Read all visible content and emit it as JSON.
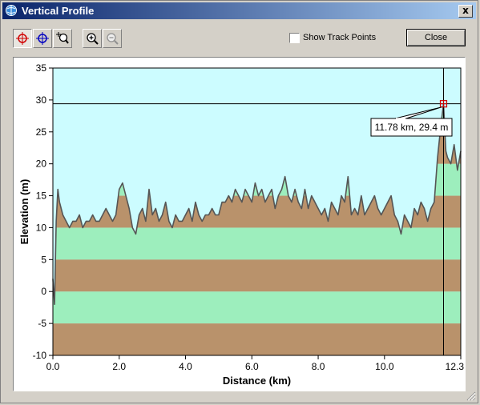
{
  "window": {
    "title": "Vertical Profile",
    "close_glyph": "x"
  },
  "toolbar": {
    "tools": [
      {
        "name": "crosshair-red-icon",
        "pressed": true
      },
      {
        "name": "crosshair-blue-icon",
        "pressed": false
      },
      {
        "name": "zoom-cursor-icon",
        "pressed": false
      },
      {
        "name": "zoom-in-icon",
        "pressed": false
      },
      {
        "name": "zoom-out-icon",
        "pressed": false
      }
    ],
    "show_track_points_label": "Show Track Points",
    "show_track_points_checked": false,
    "close_label": "Close"
  },
  "chart_data": {
    "type": "area",
    "xlabel": "Distance   (km)",
    "ylabel": "Elevation (m)",
    "xlim": [
      0,
      12.3
    ],
    "ylim": [
      -10,
      35
    ],
    "x_ticks": [
      "0.0",
      "2.0",
      "4.0",
      "6.0",
      "8.0",
      "10.0",
      "12.3"
    ],
    "x_tick_values": [
      0,
      2,
      4,
      6,
      8,
      10,
      12.3
    ],
    "y_ticks": [
      "35",
      "30",
      "25",
      "20",
      "15",
      "10",
      "5",
      "0",
      "-5",
      "-10"
    ],
    "y_tick_values": [
      35,
      30,
      25,
      20,
      15,
      10,
      5,
      0,
      -5,
      -10
    ],
    "band_colors": {
      "green": "#9deebd",
      "brown": "#b9926b",
      "sky": "#ccfcff",
      "line": "#555555"
    },
    "cursor": {
      "x": 11.78,
      "y": 29.4,
      "label": "11.78 km, 29.4 m"
    },
    "profile": {
      "x": [
        0.0,
        0.05,
        0.1,
        0.15,
        0.2,
        0.3,
        0.4,
        0.5,
        0.6,
        0.7,
        0.8,
        0.9,
        1.0,
        1.1,
        1.2,
        1.3,
        1.4,
        1.5,
        1.6,
        1.7,
        1.8,
        1.9,
        2.0,
        2.1,
        2.2,
        2.3,
        2.4,
        2.5,
        2.6,
        2.7,
        2.8,
        2.9,
        3.0,
        3.1,
        3.2,
        3.3,
        3.4,
        3.5,
        3.6,
        3.7,
        3.8,
        3.9,
        4.0,
        4.1,
        4.2,
        4.3,
        4.4,
        4.5,
        4.6,
        4.7,
        4.8,
        4.9,
        5.0,
        5.1,
        5.2,
        5.3,
        5.4,
        5.5,
        5.6,
        5.7,
        5.8,
        5.9,
        6.0,
        6.1,
        6.2,
        6.3,
        6.4,
        6.5,
        6.6,
        6.7,
        6.8,
        6.9,
        7.0,
        7.1,
        7.2,
        7.3,
        7.4,
        7.5,
        7.6,
        7.7,
        7.8,
        7.9,
        8.0,
        8.1,
        8.2,
        8.3,
        8.4,
        8.5,
        8.6,
        8.7,
        8.8,
        8.9,
        9.0,
        9.1,
        9.2,
        9.3,
        9.4,
        9.5,
        9.6,
        9.7,
        9.8,
        9.9,
        10.0,
        10.1,
        10.2,
        10.3,
        10.4,
        10.5,
        10.6,
        10.7,
        10.8,
        10.9,
        11.0,
        11.1,
        11.2,
        11.3,
        11.4,
        11.5,
        11.6,
        11.7,
        11.78,
        11.85,
        11.9,
        12.0,
        12.1,
        12.2,
        12.3
      ],
      "y": [
        2,
        -2,
        11,
        16,
        14,
        12,
        11,
        10,
        11,
        11,
        12,
        10,
        11,
        11,
        12,
        11,
        11,
        12,
        13,
        12,
        11,
        12,
        16,
        17,
        15,
        13,
        10,
        9,
        12,
        13,
        11,
        16,
        12,
        13,
        11,
        12,
        14,
        11,
        10,
        12,
        11,
        11,
        12,
        13,
        11,
        14,
        12,
        11,
        12,
        12,
        13,
        12,
        12,
        14,
        14,
        15,
        14,
        16,
        15,
        14,
        16,
        15,
        14,
        17,
        15,
        16,
        14,
        15,
        16,
        13,
        15,
        16,
        18,
        15,
        14,
        16,
        14,
        13,
        16,
        13,
        15,
        14,
        13,
        12,
        13,
        11,
        14,
        13,
        12,
        15,
        14,
        18,
        12,
        13,
        12,
        15,
        12,
        13,
        14,
        15,
        13,
        12,
        13,
        14,
        15,
        12,
        11,
        9,
        12,
        11,
        10,
        13,
        12,
        14,
        13,
        11,
        13,
        14,
        21,
        26,
        29.4,
        22,
        21,
        20,
        23,
        19,
        22
      ]
    }
  }
}
